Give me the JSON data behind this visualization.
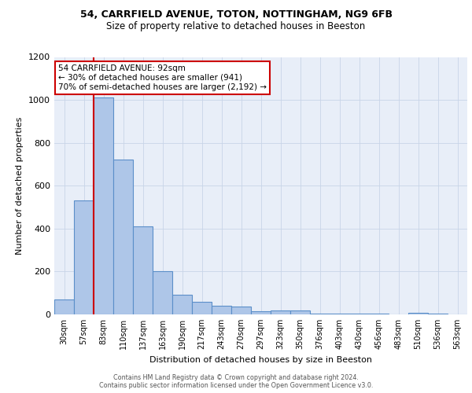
{
  "title1": "54, CARRFIELD AVENUE, TOTON, NOTTINGHAM, NG9 6FB",
  "title2": "Size of property relative to detached houses in Beeston",
  "xlabel": "Distribution of detached houses by size in Beeston",
  "ylabel": "Number of detached properties",
  "categories": [
    "30sqm",
    "57sqm",
    "83sqm",
    "110sqm",
    "137sqm",
    "163sqm",
    "190sqm",
    "217sqm",
    "243sqm",
    "270sqm",
    "297sqm",
    "323sqm",
    "350sqm",
    "376sqm",
    "403sqm",
    "430sqm",
    "456sqm",
    "483sqm",
    "510sqm",
    "536sqm",
    "563sqm"
  ],
  "values": [
    70,
    530,
    1010,
    720,
    410,
    200,
    90,
    60,
    40,
    35,
    15,
    20,
    18,
    5,
    3,
    2,
    2,
    1,
    8,
    2,
    1
  ],
  "bar_color": "#aec6e8",
  "bar_edge_color": "#5b8fc9",
  "background_color": "#e8eef8",
  "vline_color": "#cc0000",
  "annotation_text": "54 CARRFIELD AVENUE: 92sqm\n← 30% of detached houses are smaller (941)\n70% of semi-detached houses are larger (2,192) →",
  "annotation_box_color": "#ffffff",
  "annotation_box_edge": "#cc0000",
  "footer_text": "Contains HM Land Registry data © Crown copyright and database right 2024.\nContains public sector information licensed under the Open Government Licence v3.0.",
  "ylim": [
    0,
    1200
  ],
  "yticks": [
    0,
    200,
    400,
    600,
    800,
    1000,
    1200
  ]
}
